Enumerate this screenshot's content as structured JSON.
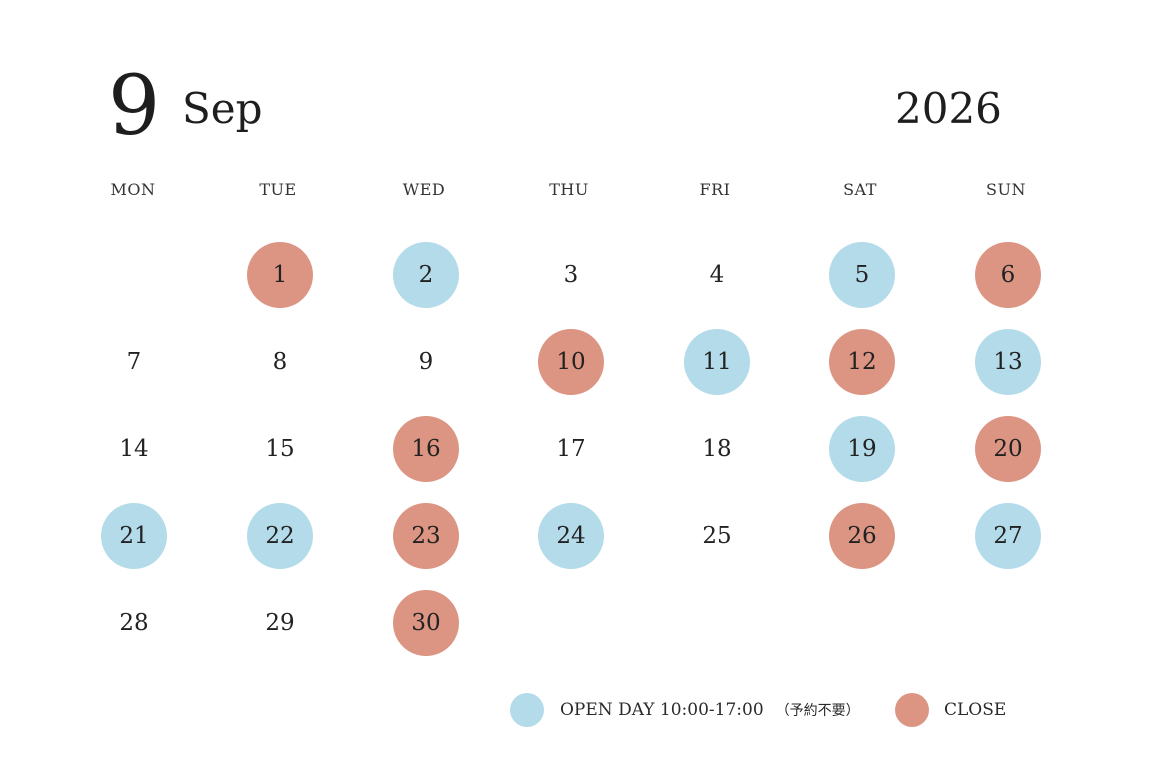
{
  "header": {
    "month_number": "9",
    "month_name": "Sep",
    "year": "2026"
  },
  "weekdays": [
    "MON",
    "TUE",
    "WED",
    "THU",
    "FRI",
    "SAT",
    "SUN"
  ],
  "days": [
    {
      "day": "1",
      "status": "close"
    },
    {
      "day": "2",
      "status": "open"
    },
    {
      "day": "3",
      "status": "none"
    },
    {
      "day": "4",
      "status": "none"
    },
    {
      "day": "5",
      "status": "open"
    },
    {
      "day": "6",
      "status": "close"
    },
    {
      "day": "7",
      "status": "none"
    },
    {
      "day": "8",
      "status": "none"
    },
    {
      "day": "9",
      "status": "none"
    },
    {
      "day": "10",
      "status": "close"
    },
    {
      "day": "11",
      "status": "open"
    },
    {
      "day": "12",
      "status": "close"
    },
    {
      "day": "13",
      "status": "open"
    },
    {
      "day": "14",
      "status": "none"
    },
    {
      "day": "15",
      "status": "none"
    },
    {
      "day": "16",
      "status": "close"
    },
    {
      "day": "17",
      "status": "none"
    },
    {
      "day": "18",
      "status": "none"
    },
    {
      "day": "19",
      "status": "open"
    },
    {
      "day": "20",
      "status": "close"
    },
    {
      "day": "21",
      "status": "open"
    },
    {
      "day": "22",
      "status": "open"
    },
    {
      "day": "23",
      "status": "close"
    },
    {
      "day": "24",
      "status": "open"
    },
    {
      "day": "25",
      "status": "none"
    },
    {
      "day": "26",
      "status": "close"
    },
    {
      "day": "27",
      "status": "open"
    },
    {
      "day": "28",
      "status": "none"
    },
    {
      "day": "29",
      "status": "none"
    },
    {
      "day": "30",
      "status": "close"
    }
  ],
  "legend": {
    "open_label": "OPEN DAY 10:00-17:00",
    "open_note": "（予約不要）",
    "close_label": "CLOSE"
  },
  "colors": {
    "open": "#b4dbe9",
    "close": "#dc9583"
  }
}
